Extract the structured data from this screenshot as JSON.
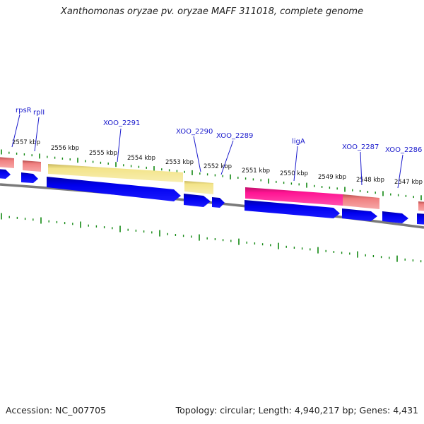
{
  "title": "Xanthomonas oryzae pv. oryzae MAFF 311018, complete genome",
  "footer": {
    "accession": "Accession: NC_007705",
    "stats": "Topology: circular; Length: 4,940,217 bp; Genes: 4,431"
  },
  "position_labels": [
    "2557 kbp",
    "2556 kbp",
    "2555 kbp",
    "2554 kbp",
    "2553 kbp",
    "2552 kbp",
    "2551 kbp",
    "2550 kbp",
    "2549 kbp",
    "2548 kbp",
    "2547 kbp"
  ],
  "gene_labels": [
    "rpsR",
    "rplI",
    "XOO_2291",
    "XOO_2290",
    "XOO_2289",
    "ligA",
    "XOO_2287",
    "XOO_2286"
  ],
  "colors": {
    "cds": "#0000ee",
    "pink": "#ff1493",
    "salmon": "#f08080",
    "khaki": "#f5e68c",
    "tick": "#118811",
    "backbone": "#888888",
    "label": "#1a1acc"
  }
}
